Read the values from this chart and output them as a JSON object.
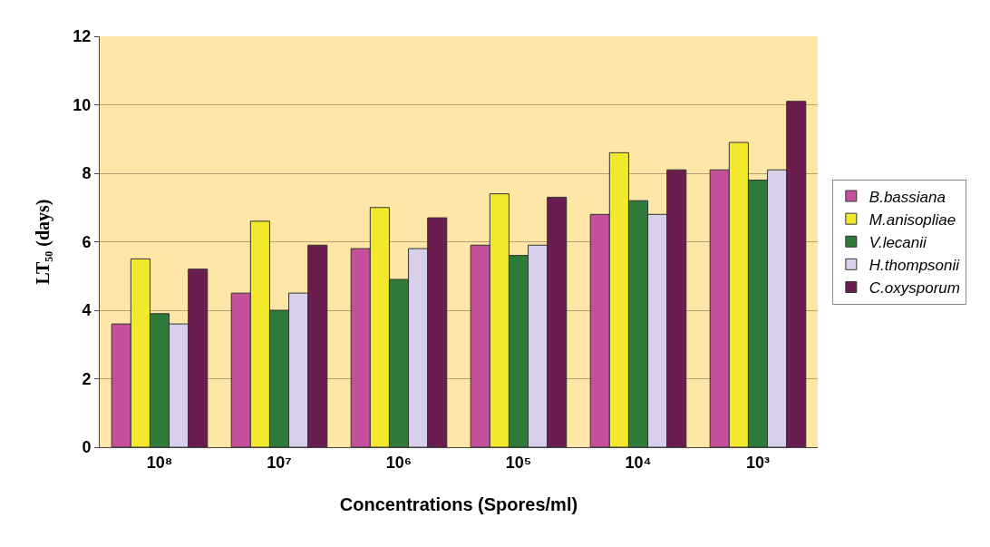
{
  "chart_data": {
    "type": "bar",
    "xlabel": "Concentrations (Spores/ml)",
    "ylabel": "LT₅₀ (days)",
    "categories": [
      "10⁸",
      "10⁷",
      "10⁶",
      "10⁵",
      "10⁴",
      "10³"
    ],
    "series": [
      {
        "name": "B.bassiana",
        "color": "#c4509c",
        "values": [
          3.6,
          4.5,
          5.8,
          5.9,
          6.8,
          8.1
        ]
      },
      {
        "name": "M.anisopliae",
        "color": "#f2e82c",
        "values": [
          5.5,
          6.6,
          7.0,
          7.4,
          8.6,
          8.9
        ]
      },
      {
        "name": "V.lecanii",
        "color": "#2e7a3a",
        "values": [
          3.9,
          4.0,
          4.9,
          5.6,
          7.2,
          7.8
        ]
      },
      {
        "name": "H.thompsonii",
        "color": "#d8d0ea",
        "values": [
          3.6,
          4.5,
          5.8,
          5.9,
          6.8,
          8.1
        ]
      },
      {
        "name": "C.oxysporum",
        "color": "#6a1d4e",
        "values": [
          5.2,
          5.9,
          6.7,
          7.3,
          8.1,
          10.1
        ]
      }
    ],
    "ylim": [
      0,
      12
    ],
    "yticks": [
      0,
      2,
      4,
      6,
      8,
      10,
      12
    ],
    "grid": "y",
    "legend": "right"
  }
}
